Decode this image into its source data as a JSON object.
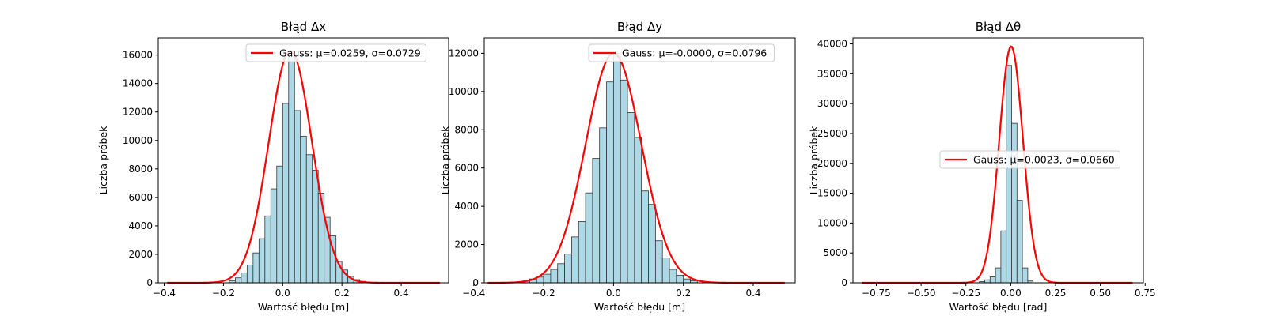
{
  "chart_data": [
    {
      "type": "histogram",
      "title": "Błąd Δx",
      "xlabel": "Wartość błędu [m]",
      "ylabel": "Liczba próbek",
      "xlim": [
        -0.42,
        0.56
      ],
      "ylim": [
        0,
        17200
      ],
      "xticks": [
        -0.4,
        -0.2,
        0.0,
        0.2,
        0.4
      ],
      "xtick_labels": [
        "−0.4",
        "−0.2",
        "0.0",
        "0.2",
        "0.4"
      ],
      "yticks": [
        0,
        2000,
        4000,
        6000,
        8000,
        10000,
        12000,
        14000,
        16000
      ],
      "ytick_labels": [
        "0",
        "2000",
        "4000",
        "6000",
        "8000",
        "10000",
        "12000",
        "14000",
        "16000"
      ],
      "bin_edges": [
        -0.18,
        -0.16,
        -0.14,
        -0.12,
        -0.1,
        -0.08,
        -0.06,
        -0.04,
        -0.02,
        0.0,
        0.02,
        0.04,
        0.06,
        0.08,
        0.1,
        0.12,
        0.14,
        0.16,
        0.18,
        0.2,
        0.22,
        0.24,
        0.26,
        0.28
      ],
      "counts": [
        150,
        350,
        700,
        1250,
        2100,
        3100,
        4700,
        6600,
        8200,
        12600,
        16300,
        12100,
        10300,
        9000,
        7900,
        6300,
        4600,
        3300,
        1500,
        900,
        450,
        220,
        100
      ],
      "series": [
        {
          "name": "Gauss: μ=0.0259, σ=0.0729",
          "mu": 0.0259,
          "sigma": 0.0729,
          "peak": 16300,
          "x_range": [
            -0.39,
            0.53
          ],
          "color": "#ff0000"
        }
      ],
      "legend_position": "upper right",
      "bar_color": "#add8e6",
      "bar_edge_color": "#333333"
    },
    {
      "type": "histogram",
      "title": "Błąd Δy",
      "xlabel": "Wartość błędu [m]",
      "ylabel": "Liczba próbek",
      "xlim": [
        -0.37,
        0.52
      ],
      "ylim": [
        0,
        12800
      ],
      "xticks": [
        -0.4,
        -0.2,
        0.0,
        0.2,
        0.4
      ],
      "xtick_labels": [
        "−0.4",
        "−0.2",
        "0.0",
        "0.2",
        "0.4"
      ],
      "yticks": [
        0,
        2000,
        4000,
        6000,
        8000,
        10000,
        12000
      ],
      "ytick_labels": [
        "0",
        "2000",
        "4000",
        "6000",
        "8000",
        "10000",
        "12000"
      ],
      "bin_edges": [
        -0.26,
        -0.24,
        -0.22,
        -0.2,
        -0.18,
        -0.16,
        -0.14,
        -0.12,
        -0.1,
        -0.08,
        -0.06,
        -0.04,
        -0.02,
        0.0,
        0.02,
        0.04,
        0.06,
        0.08,
        0.1,
        0.12,
        0.14,
        0.16,
        0.18,
        0.2,
        0.22,
        0.24
      ],
      "counts": [
        100,
        200,
        300,
        450,
        700,
        1000,
        1500,
        2400,
        3200,
        4700,
        6500,
        8100,
        10500,
        12000,
        10600,
        8900,
        7600,
        4800,
        4100,
        2200,
        1300,
        700,
        400,
        200,
        100
      ],
      "series": [
        {
          "name": "Gauss: μ=-0.0000, σ=0.0796",
          "mu": 0.0,
          "sigma": 0.0796,
          "peak": 12000,
          "x_range": [
            -0.36,
            0.49
          ],
          "color": "#ff0000"
        }
      ],
      "legend_position": "upper right",
      "bar_color": "#add8e6",
      "bar_edge_color": "#333333"
    },
    {
      "type": "histogram",
      "title": "Błąd Δθ",
      "xlabel": "Wartość błędu [rad]",
      "ylabel": "Liczba próbek",
      "xlim": [
        -0.88,
        0.74
      ],
      "ylim": [
        0,
        41000
      ],
      "xticks": [
        -0.75,
        -0.5,
        -0.25,
        0.0,
        0.25,
        0.5,
        0.75
      ],
      "xtick_labels": [
        "−0.75",
        "−0.50",
        "−0.25",
        "0.00",
        "0.25",
        "0.50",
        "0.75"
      ],
      "yticks": [
        0,
        5000,
        10000,
        15000,
        20000,
        25000,
        30000,
        35000,
        40000
      ],
      "ytick_labels": [
        "0",
        "5000",
        "10000",
        "15000",
        "20000",
        "25000",
        "30000",
        "35000",
        "40000"
      ],
      "bin_edges": [
        -0.175,
        -0.145,
        -0.115,
        -0.085,
        -0.055,
        -0.025,
        0.005,
        0.035,
        0.065,
        0.095,
        0.125
      ],
      "counts": [
        200,
        500,
        1000,
        2500,
        8700,
        36400,
        26700,
        13800,
        2500,
        300
      ],
      "series": [
        {
          "name": "Gauss: μ=0.0023, σ=0.0660",
          "mu": 0.0023,
          "sigma": 0.066,
          "peak": 39600,
          "x_range": [
            -0.83,
            0.68
          ],
          "color": "#ff0000"
        }
      ],
      "legend_position": "center right",
      "bar_color": "#add8e6",
      "bar_edge_color": "#333333"
    }
  ]
}
